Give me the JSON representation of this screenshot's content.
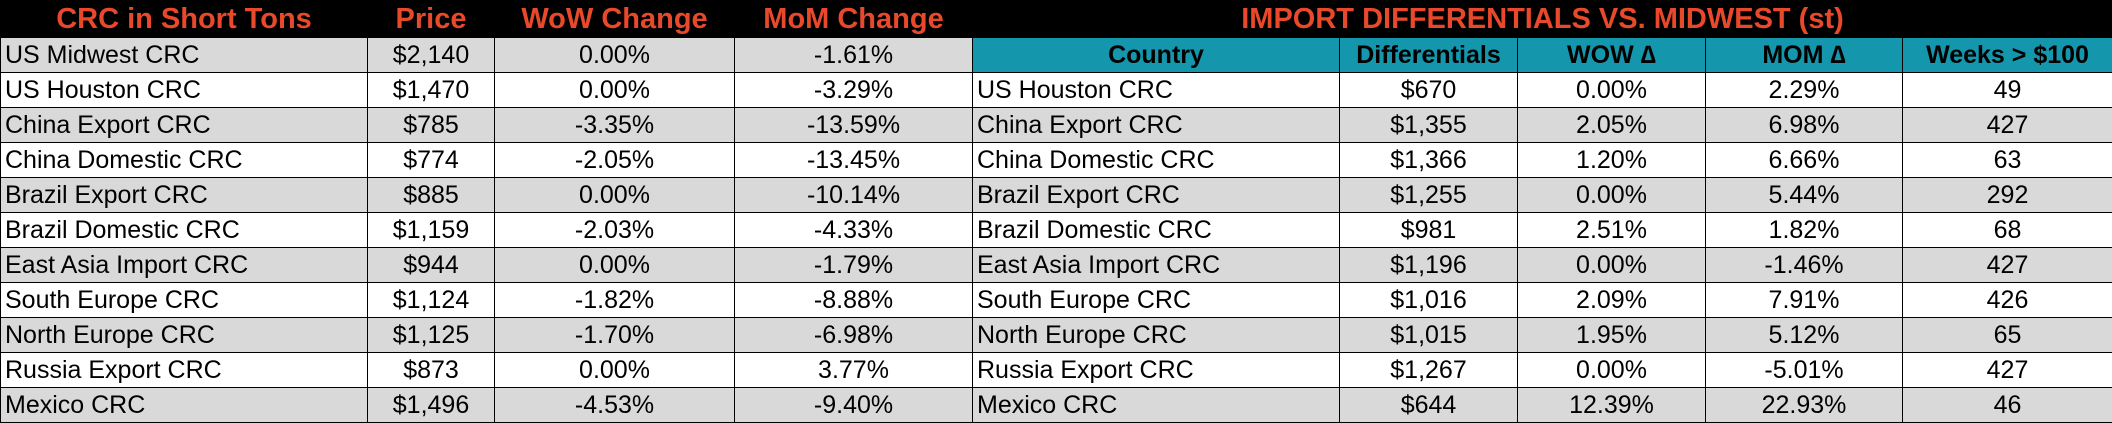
{
  "left_table": {
    "headers": [
      "CRC in Short Tons",
      "Price",
      "WoW Change",
      "MoM Change"
    ],
    "rows": [
      {
        "name": "US Midwest CRC",
        "price": "$2,140",
        "wow": "0.00%",
        "mom": "-1.61%"
      },
      {
        "name": "US Houston CRC",
        "price": "$1,470",
        "wow": "0.00%",
        "mom": "-3.29%"
      },
      {
        "name": "China Export CRC",
        "price": "$785",
        "wow": "-3.35%",
        "mom": "-13.59%"
      },
      {
        "name": "China Domestic CRC",
        "price": "$774",
        "wow": "-2.05%",
        "mom": "-13.45%"
      },
      {
        "name": "Brazil Export CRC",
        "price": "$885",
        "wow": "0.00%",
        "mom": "-10.14%"
      },
      {
        "name": "Brazil Domestic CRC",
        "price": "$1,159",
        "wow": "-2.03%",
        "mom": "-4.33%"
      },
      {
        "name": "East Asia Import CRC",
        "price": "$944",
        "wow": "0.00%",
        "mom": "-1.79%"
      },
      {
        "name": "South Europe CRC",
        "price": "$1,124",
        "wow": "-1.82%",
        "mom": "-8.88%"
      },
      {
        "name": "North Europe CRC",
        "price": "$1,125",
        "wow": "-1.70%",
        "mom": "-6.98%"
      },
      {
        "name": "Russia Export CRC",
        "price": "$873",
        "wow": "0.00%",
        "mom": "3.77%"
      },
      {
        "name": "Mexico CRC",
        "price": "$1,496",
        "wow": "-4.53%",
        "mom": "-9.40%"
      }
    ]
  },
  "right_table": {
    "title": "IMPORT DIFFERENTIALS VS. MIDWEST (st)",
    "headers": [
      "Country",
      "Differentials",
      "WOW ∆",
      "MOM ∆",
      "Weeks > $100"
    ],
    "rows": [
      {
        "name": "US Houston CRC",
        "diff": "$670",
        "wow": "0.00%",
        "mom": "2.29%",
        "weeks": "49"
      },
      {
        "name": "China Export CRC",
        "diff": "$1,355",
        "wow": "2.05%",
        "mom": "6.98%",
        "weeks": "427"
      },
      {
        "name": "China Domestic CRC",
        "diff": "$1,366",
        "wow": "1.20%",
        "mom": "6.66%",
        "weeks": "63"
      },
      {
        "name": "Brazil Export CRC",
        "diff": "$1,255",
        "wow": "0.00%",
        "mom": "5.44%",
        "weeks": "292"
      },
      {
        "name": "Brazil Domestic CRC",
        "diff": "$981",
        "wow": "2.51%",
        "mom": "1.82%",
        "weeks": "68"
      },
      {
        "name": "East Asia Import CRC",
        "diff": "$1,196",
        "wow": "0.00%",
        "mom": "-1.46%",
        "weeks": "427"
      },
      {
        "name": "South Europe CRC",
        "diff": "$1,016",
        "wow": "2.09%",
        "mom": "7.91%",
        "weeks": "426"
      },
      {
        "name": "North Europe CRC",
        "diff": "$1,015",
        "wow": "1.95%",
        "mom": "5.12%",
        "weeks": "65"
      },
      {
        "name": "Russia Export CRC",
        "diff": "$1,267",
        "wow": "0.00%",
        "mom": "-5.01%",
        "weeks": "427"
      },
      {
        "name": "Mexico CRC",
        "diff": "$644",
        "wow": "12.39%",
        "mom": "22.93%",
        "weeks": "46"
      }
    ]
  },
  "colors": {
    "header_bg": "#000000",
    "header_text": "#e8492a",
    "teal_header": "#1496ac",
    "row_shade": "#d9d9d9",
    "row_plain": "#ffffff"
  }
}
